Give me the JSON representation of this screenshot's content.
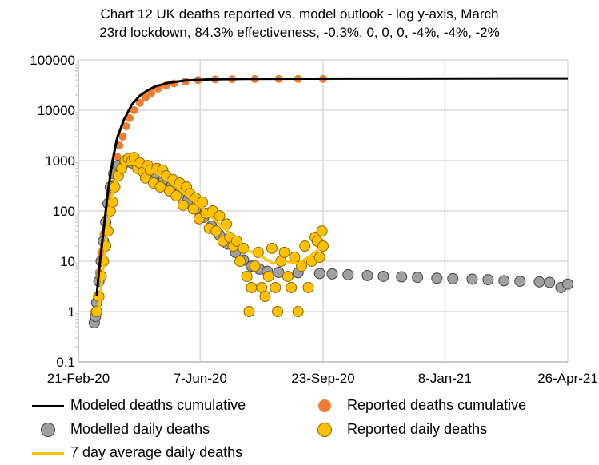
{
  "chart_data": {
    "type": "scatter",
    "title": "Chart 12 UK deaths reported vs. model outlook - log y-axis, March 23rd lockdown, 84.3% effectiveness, -0.3%, 0, 0, 0, -4%, -4%, -2%",
    "title_lines": [
      "Chart 12 UK deaths reported vs. model outlook - log y-axis, March",
      "23rd lockdown, 84.3% effectiveness, -0.3%, 0, 0, 0, -4%, -4%, -2%"
    ],
    "xlabel": "",
    "ylabel": "",
    "y_scale": "log",
    "ylim": [
      0.1,
      100000
    ],
    "xlim": [
      "2020-02-21",
      "2021-04-26"
    ],
    "y_ticks": [
      "0.1",
      "1",
      "10",
      "100",
      "1000",
      "10000",
      "100000"
    ],
    "x_ticks": [
      {
        "date": "2020-02-21",
        "label": "21-Feb-20"
      },
      {
        "date": "2020-06-07",
        "label": "7-Jun-20"
      },
      {
        "date": "2020-09-23",
        "label": "23-Sep-20"
      },
      {
        "date": "2021-01-08",
        "label": "8-Jan-21"
      },
      {
        "date": "2021-04-26",
        "label": "26-Apr-21"
      }
    ],
    "grid": true,
    "legend_placement": "bottom",
    "series": [
      {
        "name": "Modeled deaths cumulative",
        "kind": "line",
        "color": "#000000",
        "points": [
          [
            "2020-03-08",
            2
          ],
          [
            "2020-03-10",
            6
          ],
          [
            "2020-03-14",
            40
          ],
          [
            "2020-03-18",
            250
          ],
          [
            "2020-03-22",
            1000
          ],
          [
            "2020-03-26",
            2800
          ],
          [
            "2020-04-01",
            6500
          ],
          [
            "2020-04-08",
            13000
          ],
          [
            "2020-04-15",
            19500
          ],
          [
            "2020-04-22",
            25000
          ],
          [
            "2020-04-29",
            30000
          ],
          [
            "2020-05-10",
            35000
          ],
          [
            "2020-05-25",
            39000
          ],
          [
            "2020-06-15",
            41000
          ],
          [
            "2020-07-15",
            42000
          ],
          [
            "2020-10-15",
            42500
          ],
          [
            "2021-04-26",
            43000
          ]
        ]
      },
      {
        "name": "Reported deaths cumulative",
        "kind": "dots",
        "color": "#ED7D31",
        "points": [
          [
            "2020-03-06",
            1
          ],
          [
            "2020-03-08",
            2
          ],
          [
            "2020-03-10",
            6
          ],
          [
            "2020-03-12",
            15
          ],
          [
            "2020-03-14",
            35
          ],
          [
            "2020-03-16",
            70
          ],
          [
            "2020-03-18",
            140
          ],
          [
            "2020-03-20",
            230
          ],
          [
            "2020-03-22",
            350
          ],
          [
            "2020-03-24",
            700
          ],
          [
            "2020-03-26",
            1200
          ],
          [
            "2020-03-28",
            2000
          ],
          [
            "2020-03-31",
            3000
          ],
          [
            "2020-04-03",
            4800
          ],
          [
            "2020-04-06",
            7000
          ],
          [
            "2020-04-10",
            10000
          ],
          [
            "2020-04-15",
            14000
          ],
          [
            "2020-04-20",
            18000
          ],
          [
            "2020-04-25",
            22000
          ],
          [
            "2020-05-01",
            27000
          ],
          [
            "2020-05-08",
            31000
          ],
          [
            "2020-05-15",
            34000
          ],
          [
            "2020-05-25",
            37000
          ],
          [
            "2020-06-05",
            39700
          ],
          [
            "2020-06-20",
            41000
          ],
          [
            "2020-07-05",
            41500
          ],
          [
            "2020-07-25",
            41700
          ],
          [
            "2020-08-15",
            41800
          ],
          [
            "2020-09-01",
            41850
          ],
          [
            "2020-09-23",
            42000
          ]
        ]
      },
      {
        "name": "Modelled daily deaths",
        "kind": "dots",
        "color": "#A0A0A0",
        "points": [
          [
            "2020-03-06",
            0.6
          ],
          [
            "2020-03-07",
            0.8
          ],
          [
            "2020-03-08",
            1.5
          ],
          [
            "2020-03-10",
            4
          ],
          [
            "2020-03-12",
            10
          ],
          [
            "2020-03-14",
            25
          ],
          [
            "2020-03-16",
            60
          ],
          [
            "2020-03-18",
            140
          ],
          [
            "2020-03-20",
            300
          ],
          [
            "2020-03-23",
            550
          ],
          [
            "2020-03-27",
            800
          ],
          [
            "2020-04-02",
            920
          ],
          [
            "2020-04-08",
            900
          ],
          [
            "2020-04-15",
            820
          ],
          [
            "2020-04-22",
            700
          ],
          [
            "2020-04-29",
            560
          ],
          [
            "2020-05-06",
            430
          ],
          [
            "2020-05-13",
            320
          ],
          [
            "2020-05-20",
            230
          ],
          [
            "2020-05-27",
            160
          ],
          [
            "2020-06-03",
            110
          ],
          [
            "2020-06-10",
            75
          ],
          [
            "2020-06-17",
            50
          ],
          [
            "2020-06-24",
            33
          ],
          [
            "2020-07-01",
            22
          ],
          [
            "2020-07-08",
            15
          ],
          [
            "2020-07-15",
            10.5
          ],
          [
            "2020-07-22",
            8
          ],
          [
            "2020-07-29",
            7
          ],
          [
            "2020-08-05",
            6.3
          ],
          [
            "2020-08-15",
            6
          ],
          [
            "2020-09-01",
            5.9
          ],
          [
            "2020-09-20",
            5.7
          ],
          [
            "2020-10-01",
            5.6
          ],
          [
            "2020-10-15",
            5.4
          ],
          [
            "2020-11-01",
            5.2
          ],
          [
            "2020-11-15",
            5
          ],
          [
            "2020-12-01",
            4.9
          ],
          [
            "2020-12-15",
            4.8
          ],
          [
            "2021-01-01",
            4.6
          ],
          [
            "2021-01-15",
            4.5
          ],
          [
            "2021-02-01",
            4.4
          ],
          [
            "2021-02-15",
            4.3
          ],
          [
            "2021-03-01",
            4.1
          ],
          [
            "2021-03-15",
            4
          ],
          [
            "2021-04-01",
            3.9
          ],
          [
            "2021-04-10",
            3.8
          ],
          [
            "2021-04-20",
            3
          ],
          [
            "2021-04-26",
            3.5
          ]
        ]
      },
      {
        "name": "Reported daily deaths",
        "kind": "dots",
        "color": "#FFC000",
        "points": [
          [
            "2020-03-08",
            1
          ],
          [
            "2020-03-10",
            2
          ],
          [
            "2020-03-12",
            5
          ],
          [
            "2020-03-14",
            10
          ],
          [
            "2020-03-16",
            20
          ],
          [
            "2020-03-18",
            40
          ],
          [
            "2020-03-20",
            100
          ],
          [
            "2020-03-22",
            150
          ],
          [
            "2020-03-24",
            300
          ],
          [
            "2020-03-27",
            500
          ],
          [
            "2020-03-30",
            700
          ],
          [
            "2020-04-02",
            1000
          ],
          [
            "2020-04-05",
            1100
          ],
          [
            "2020-04-08",
            1000
          ],
          [
            "2020-04-10",
            1150
          ],
          [
            "2020-04-13",
            700
          ],
          [
            "2020-04-15",
            900
          ],
          [
            "2020-04-18",
            600
          ],
          [
            "2020-04-20",
            450
          ],
          [
            "2020-04-22",
            800
          ],
          [
            "2020-04-24",
            650
          ],
          [
            "2020-04-27",
            360
          ],
          [
            "2020-04-30",
            700
          ],
          [
            "2020-05-03",
            300
          ],
          [
            "2020-05-05",
            650
          ],
          [
            "2020-05-08",
            500
          ],
          [
            "2020-05-11",
            250
          ],
          [
            "2020-05-14",
            420
          ],
          [
            "2020-05-17",
            200
          ],
          [
            "2020-05-20",
            360
          ],
          [
            "2020-05-23",
            130
          ],
          [
            "2020-05-26",
            300
          ],
          [
            "2020-05-29",
            220
          ],
          [
            "2020-06-01",
            110
          ],
          [
            "2020-06-03",
            180
          ],
          [
            "2020-06-06",
            70
          ],
          [
            "2020-06-09",
            150
          ],
          [
            "2020-06-12",
            90
          ],
          [
            "2020-06-15",
            45
          ],
          [
            "2020-06-18",
            100
          ],
          [
            "2020-06-21",
            40
          ],
          [
            "2020-06-24",
            80
          ],
          [
            "2020-06-27",
            25
          ],
          [
            "2020-06-30",
            55
          ],
          [
            "2020-07-03",
            30
          ],
          [
            "2020-07-06",
            20
          ],
          [
            "2020-07-09",
            25
          ],
          [
            "2020-07-12",
            10
          ],
          [
            "2020-07-15",
            18
          ],
          [
            "2020-07-18",
            5
          ],
          [
            "2020-07-20",
            1
          ],
          [
            "2020-07-22",
            3
          ],
          [
            "2020-07-25",
            8
          ],
          [
            "2020-07-28",
            15
          ],
          [
            "2020-07-31",
            3
          ],
          [
            "2020-08-03",
            2
          ],
          [
            "2020-08-06",
            5
          ],
          [
            "2020-08-09",
            18
          ],
          [
            "2020-08-12",
            3
          ],
          [
            "2020-08-14",
            1
          ],
          [
            "2020-08-17",
            10
          ],
          [
            "2020-08-20",
            15
          ],
          [
            "2020-08-23",
            5
          ],
          [
            "2020-08-26",
            3
          ],
          [
            "2020-08-29",
            12
          ],
          [
            "2020-09-01",
            1
          ],
          [
            "2020-09-04",
            8
          ],
          [
            "2020-09-07",
            20
          ],
          [
            "2020-09-10",
            3
          ],
          [
            "2020-09-13",
            10
          ],
          [
            "2020-09-16",
            30
          ],
          [
            "2020-09-18",
            25
          ],
          [
            "2020-09-20",
            12
          ],
          [
            "2020-09-22",
            40
          ],
          [
            "2020-09-23",
            20
          ]
        ]
      },
      {
        "name": "7 day average daily deaths",
        "kind": "line",
        "color": "#FFC000",
        "points": [
          [
            "2020-03-10",
            1
          ],
          [
            "2020-03-14",
            8
          ],
          [
            "2020-03-18",
            60
          ],
          [
            "2020-03-22",
            250
          ],
          [
            "2020-03-28",
            650
          ],
          [
            "2020-04-05",
            900
          ],
          [
            "2020-04-12",
            880
          ],
          [
            "2020-04-20",
            760
          ],
          [
            "2020-05-01",
            550
          ],
          [
            "2020-05-10",
            400
          ],
          [
            "2020-05-20",
            270
          ],
          [
            "2020-06-01",
            160
          ],
          [
            "2020-06-10",
            110
          ],
          [
            "2020-06-20",
            65
          ],
          [
            "2020-07-01",
            40
          ],
          [
            "2020-07-10",
            25
          ],
          [
            "2020-07-20",
            16
          ],
          [
            "2020-08-01",
            12
          ],
          [
            "2020-08-10",
            9
          ],
          [
            "2020-08-20",
            10
          ],
          [
            "2020-09-01",
            9
          ],
          [
            "2020-09-10",
            12
          ],
          [
            "2020-09-23",
            20
          ]
        ]
      }
    ]
  }
}
